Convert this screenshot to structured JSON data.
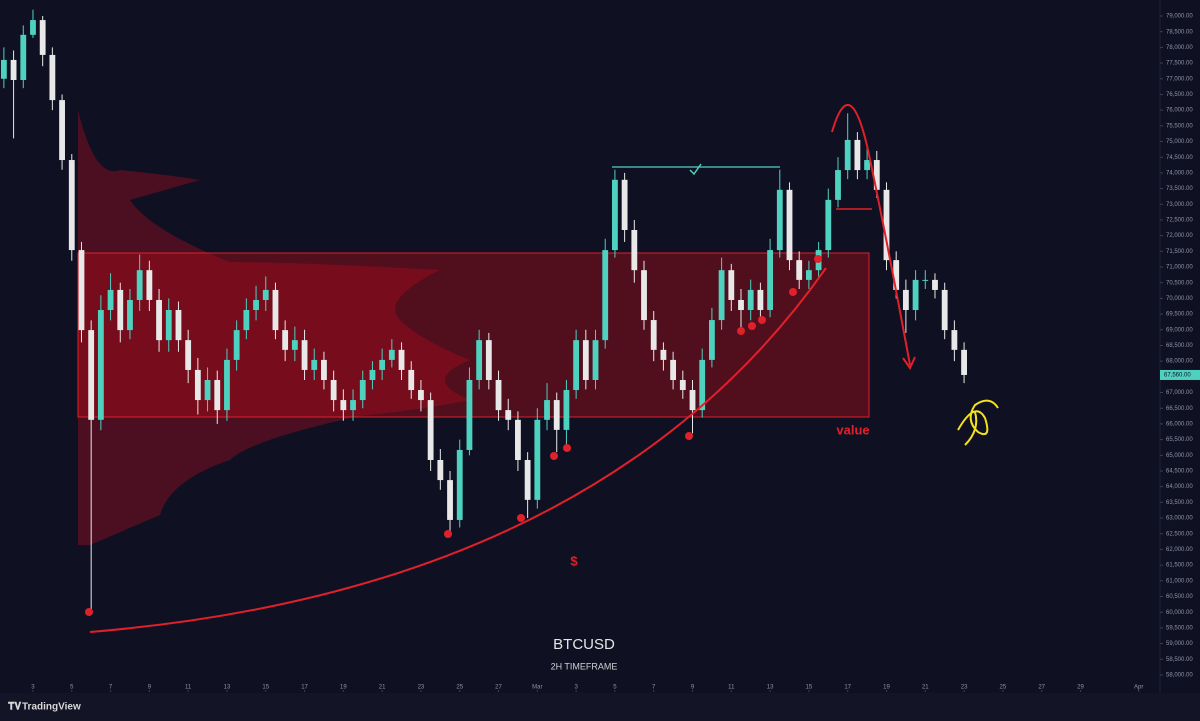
{
  "chart_data": {
    "type": "candlestick",
    "title": "BTCUSD",
    "subtitle": "2H TIMEFRAME",
    "watermark": "TradingView",
    "annotations": [
      "value",
      "$"
    ],
    "price_label": "67,560.00",
    "x": [
      -1.5,
      -1,
      -0.5,
      0,
      0.5,
      1,
      1.5,
      2,
      2.5,
      3,
      3.5,
      4,
      4.5,
      5,
      5.5,
      6,
      6.5,
      7,
      7.5,
      8,
      8.5,
      9,
      9.5,
      10,
      10.5,
      11,
      11.5,
      12,
      12.5,
      13,
      13.5,
      14,
      14.5,
      15,
      15.5,
      16,
      16.5,
      17,
      17.5,
      18,
      18.5,
      19,
      19.5,
      20,
      20.5,
      21,
      21.5,
      22,
      22.5,
      23,
      23.5,
      24,
      24.5,
      25,
      25.5,
      26,
      26.5,
      27,
      27.5,
      28,
      28.5,
      29,
      29.5,
      30,
      30.5,
      31,
      31.5,
      32,
      32.5,
      33,
      33.5,
      34,
      34.5,
      35,
      35.5,
      36,
      36.5,
      37,
      37.5,
      38,
      38.5,
      39,
      39.5,
      40,
      40.5,
      41,
      41.5,
      42,
      42.5,
      43,
      43.5,
      44,
      44.5,
      45,
      45.5,
      46,
      46.5,
      47,
      47.5,
      48
    ],
    "open": [
      77000,
      77600,
      76960,
      78400,
      78870,
      77760,
      76320,
      74410,
      71540,
      68990,
      66130,
      69630,
      70270,
      68990,
      69950,
      70900,
      69950,
      68670,
      69630,
      68670,
      67720,
      66760,
      67400,
      66440,
      68040,
      68990,
      69630,
      69950,
      70270,
      68990,
      68360,
      68670,
      67720,
      68040,
      67400,
      66760,
      66440,
      66760,
      67400,
      67720,
      68040,
      68360,
      67720,
      67080,
      66760,
      64850,
      64210,
      62940,
      65170,
      67400,
      68670,
      67400,
      66440,
      66130,
      64850,
      63580,
      66130,
      66760,
      65810,
      67080,
      68670,
      67400,
      68670,
      71540,
      73780,
      72180,
      70900,
      69310,
      68360,
      68040,
      67400,
      67080,
      66440,
      68040,
      69310,
      70900,
      69950,
      69630,
      70270,
      69630,
      71540,
      73460,
      71220,
      70590,
      70900,
      71540,
      73140,
      74090,
      75050,
      74090,
      74410,
      73460,
      71220,
      70270,
      69630,
      70590,
      70590,
      70270,
      68990,
      68360
    ],
    "high": [
      78000,
      77900,
      78700,
      79200,
      79000,
      78000,
      76500,
      74600,
      71800,
      69300,
      70100,
      70800,
      70500,
      70300,
      71400,
      71200,
      70300,
      70000,
      69900,
      69000,
      68100,
      67800,
      67700,
      68400,
      69300,
      70000,
      70400,
      70700,
      70500,
      69300,
      69100,
      69000,
      68400,
      68300,
      67700,
      67100,
      67100,
      67700,
      68000,
      68400,
      68700,
      68600,
      68000,
      67400,
      67000,
      65200,
      64500,
      65500,
      67800,
      69000,
      68900,
      67700,
      66800,
      66400,
      65100,
      66500,
      67300,
      67000,
      67400,
      69000,
      69000,
      69000,
      71900,
      74100,
      74000,
      72500,
      71200,
      69600,
      68600,
      68300,
      67700,
      67400,
      68400,
      69700,
      71300,
      71100,
      70300,
      70600,
      70500,
      71900,
      74100,
      73700,
      71500,
      71200,
      71800,
      73500,
      74500,
      75900,
      75300,
      74800,
      74700,
      73700,
      71500,
      70600,
      70900,
      70900,
      70800,
      70500,
      69300,
      68600
    ],
    "low": [
      76700,
      75100,
      76700,
      78300,
      77400,
      76000,
      74100,
      71200,
      68600,
      60000,
      65800,
      69300,
      68600,
      68700,
      69600,
      69600,
      68300,
      68300,
      68300,
      67300,
      66300,
      66400,
      66000,
      66100,
      67700,
      68700,
      69300,
      69600,
      68700,
      68000,
      68000,
      67400,
      67400,
      67100,
      66400,
      66100,
      66100,
      66500,
      67100,
      67400,
      67800,
      67400,
      66800,
      66400,
      64500,
      63900,
      62500,
      62700,
      65000,
      67100,
      67100,
      66100,
      65800,
      64500,
      63000,
      63300,
      65800,
      65100,
      65300,
      66800,
      67100,
      67100,
      68400,
      71300,
      71800,
      70500,
      69000,
      68000,
      67700,
      67100,
      66800,
      65700,
      66200,
      67800,
      69000,
      69600,
      68900,
      69300,
      69300,
      69400,
      71300,
      70900,
      70300,
      70300,
      70600,
      71300,
      72900,
      73800,
      73800,
      73800,
      73200,
      70900,
      70000,
      68900,
      69300,
      70300,
      70000,
      68700,
      68000,
      67300
    ],
    "close": [
      77600,
      76960,
      78400,
      78870,
      77760,
      76320,
      74410,
      71540,
      68990,
      66130,
      69630,
      70270,
      68990,
      69950,
      70900,
      69950,
      68670,
      69630,
      68670,
      67720,
      66760,
      67400,
      66440,
      68040,
      68990,
      69630,
      69950,
      70270,
      68990,
      68360,
      68670,
      67720,
      68040,
      67400,
      66760,
      66440,
      66760,
      67400,
      67720,
      68040,
      68360,
      67720,
      67080,
      66760,
      64850,
      64210,
      62940,
      65170,
      67400,
      68670,
      67400,
      66440,
      66130,
      64850,
      63580,
      66130,
      66760,
      65810,
      67080,
      68670,
      67400,
      68670,
      71540,
      73780,
      72180,
      70900,
      69310,
      68360,
      68040,
      67400,
      67080,
      66440,
      68040,
      69310,
      70900,
      69950,
      69630,
      70270,
      69630,
      71540,
      73460,
      71220,
      70590,
      70900,
      71540,
      73140,
      74090,
      75050,
      74090,
      74410,
      73460,
      71220,
      70270,
      69630,
      70590,
      70590,
      70270,
      68990,
      68360,
      67560
    ],
    "up_color": "#4fd1c0",
    "down_color": "#e8e8e8",
    "grid": false,
    "xlim": [
      -1.7,
      58.1
    ],
    "ylim": [
      57520,
      79510
    ],
    "xticks": [
      {
        "value": 0,
        "label": "3"
      },
      {
        "value": 2,
        "label": "5"
      },
      {
        "value": 4,
        "label": "7"
      },
      {
        "value": 6,
        "label": "9"
      },
      {
        "value": 8,
        "label": "11"
      },
      {
        "value": 10,
        "label": "13"
      },
      {
        "value": 12,
        "label": "15"
      },
      {
        "value": 14,
        "label": "17"
      },
      {
        "value": 16,
        "label": "19"
      },
      {
        "value": 18,
        "label": "21"
      },
      {
        "value": 20,
        "label": "23"
      },
      {
        "value": 22,
        "label": "25"
      },
      {
        "value": 24,
        "label": "27"
      },
      {
        "value": 26,
        "label": "Mar"
      },
      {
        "value": 28,
        "label": "3"
      },
      {
        "value": 30,
        "label": "5"
      },
      {
        "value": 32,
        "label": "7"
      },
      {
        "value": 34,
        "label": "9"
      },
      {
        "value": 36,
        "label": "11"
      },
      {
        "value": 38,
        "label": "13"
      },
      {
        "value": 40,
        "label": "15"
      },
      {
        "value": 42,
        "label": "17"
      },
      {
        "value": 44,
        "label": "19"
      },
      {
        "value": 46,
        "label": "21"
      },
      {
        "value": 48,
        "label": "23"
      },
      {
        "value": 50,
        "label": "25"
      },
      {
        "value": 52,
        "label": "27"
      },
      {
        "value": 54,
        "label": "29"
      },
      {
        "value": 57,
        "label": "Apr"
      }
    ],
    "yticks": [
      {
        "value": 58000,
        "label": "58,000.00"
      },
      {
        "value": 58500,
        "label": "58,500.00"
      },
      {
        "value": 59000,
        "label": "59,000.00"
      },
      {
        "value": 59500,
        "label": "59,500.00"
      },
      {
        "value": 60000,
        "label": "60,000.00"
      },
      {
        "value": 60500,
        "label": "60,500.00"
      },
      {
        "value": 61000,
        "label": "61,000.00"
      },
      {
        "value": 61500,
        "label": "61,500.00"
      },
      {
        "value": 62000,
        "label": "62,000.00"
      },
      {
        "value": 62500,
        "label": "62,500.00"
      },
      {
        "value": 63000,
        "label": "63,000.00"
      },
      {
        "value": 63500,
        "label": "63,500.00"
      },
      {
        "value": 64000,
        "label": "64,000.00"
      },
      {
        "value": 64500,
        "label": "64,500.00"
      },
      {
        "value": 65000,
        "label": "65,000.00"
      },
      {
        "value": 65500,
        "label": "65,500.00"
      },
      {
        "value": 66000,
        "label": "66,000.00"
      },
      {
        "value": 66500,
        "label": "66,500.00"
      },
      {
        "value": 67000,
        "label": "67,000.00"
      },
      {
        "value": 67500,
        "label": "67,500.00"
      },
      {
        "value": 68000,
        "label": "68,000.00"
      },
      {
        "value": 68500,
        "label": "68,500.00"
      },
      {
        "value": 69000,
        "label": "69,000.00"
      },
      {
        "value": 69500,
        "label": "69,500.00"
      },
      {
        "value": 70000,
        "label": "70,000.00"
      },
      {
        "value": 70500,
        "label": "70,500.00"
      },
      {
        "value": 71000,
        "label": "71,000.00"
      },
      {
        "value": 71500,
        "label": "71,500.00"
      },
      {
        "value": 72000,
        "label": "72,000.00"
      },
      {
        "value": 72500,
        "label": "72,500.00"
      },
      {
        "value": 73000,
        "label": "73,000.00"
      },
      {
        "value": 73500,
        "label": "73,500.00"
      },
      {
        "value": 74000,
        "label": "74,000.00"
      },
      {
        "value": 74500,
        "label": "74,500.00"
      },
      {
        "value": 75000,
        "label": "75,000.00"
      },
      {
        "value": 75500,
        "label": "75,500.00"
      },
      {
        "value": 76000,
        "label": "76,000.00"
      },
      {
        "value": 76500,
        "label": "76,500.00"
      },
      {
        "value": 77000,
        "label": "77,000.00"
      },
      {
        "value": 77500,
        "label": "77,500.00"
      },
      {
        "value": 78000,
        "label": "78,000.00"
      },
      {
        "value": 78500,
        "label": "78,500.00"
      },
      {
        "value": 79000,
        "label": "79,000.00"
      }
    ]
  }
}
